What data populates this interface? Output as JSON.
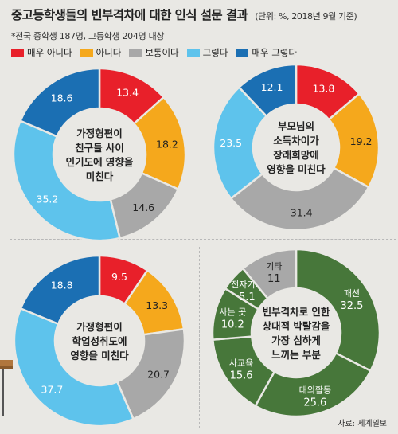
{
  "title": "중고등학생들의 빈부격차에 대한 인식 설문 결과",
  "unit_note": "(단위: %, 2018년 9월 기준)",
  "subtitle": "*전국 중학생 187명, 고등학생 204명 대상",
  "legend": [
    {
      "label": "매우 아니다",
      "color": "#e8202a"
    },
    {
      "label": "아니다",
      "color": "#f5a81c"
    },
    {
      "label": "보통이다",
      "color": "#a8a8a8"
    },
    {
      "label": "그렇다",
      "color": "#5ec3ec"
    },
    {
      "label": "매우 그렇다",
      "color": "#1b6fb3"
    }
  ],
  "source": "자료: 세계일보",
  "chart_data": [
    {
      "type": "pie",
      "title": "가정형편이 친구들 사이 인기도에 영향을 미친다",
      "center_lines": [
        "가정형편이",
        "친구들 사이",
        "인기도에 영향을",
        "미친다"
      ],
      "categories": [
        "매우 아니다",
        "아니다",
        "보통이다",
        "그렇다",
        "매우 그렇다"
      ],
      "values": [
        13.4,
        18.2,
        14.6,
        35.2,
        18.6
      ],
      "colors": [
        "#e8202a",
        "#f5a81c",
        "#a8a8a8",
        "#5ec3ec",
        "#1b6fb3"
      ]
    },
    {
      "type": "pie",
      "title": "부모님의 소득차이가 장래희망에 영향을 미친다",
      "center_lines": [
        "부모님의",
        "소득차이가",
        "장래희망에",
        "영향을 미친다"
      ],
      "categories": [
        "매우 아니다",
        "아니다",
        "보통이다",
        "그렇다",
        "매우 그렇다"
      ],
      "values": [
        13.8,
        19.2,
        31.4,
        23.5,
        12.1
      ],
      "colors": [
        "#e8202a",
        "#f5a81c",
        "#a8a8a8",
        "#5ec3ec",
        "#1b6fb3"
      ]
    },
    {
      "type": "pie",
      "title": "가정형편이 학업성취도에 영향을 미친다",
      "center_lines": [
        "가정형편이",
        "학업성취도에",
        "영향을 미친다"
      ],
      "categories": [
        "매우 아니다",
        "아니다",
        "보통이다",
        "그렇다",
        "매우 그렇다"
      ],
      "values": [
        9.5,
        13.3,
        20.7,
        37.7,
        18.8
      ],
      "colors": [
        "#e8202a",
        "#f5a81c",
        "#a8a8a8",
        "#5ec3ec",
        "#1b6fb3"
      ]
    },
    {
      "type": "pie",
      "title": "빈부격차로 인한 상대적 박탈감을 가장 심하게 느끼는 부분",
      "center_lines": [
        "빈부격차로 인한",
        "상대적 박탈감을",
        "가장 심하게",
        "느끼는 부분"
      ],
      "categories": [
        "패션",
        "대외활동",
        "사교육",
        "사는 곳",
        "전자기기",
        "기타"
      ],
      "values": [
        32.5,
        25.6,
        15.6,
        10.2,
        5.1,
        11
      ],
      "colors": [
        "#47773a",
        "#47773a",
        "#47773a",
        "#47773a",
        "#47773a",
        "#a8a8a8"
      ]
    }
  ]
}
